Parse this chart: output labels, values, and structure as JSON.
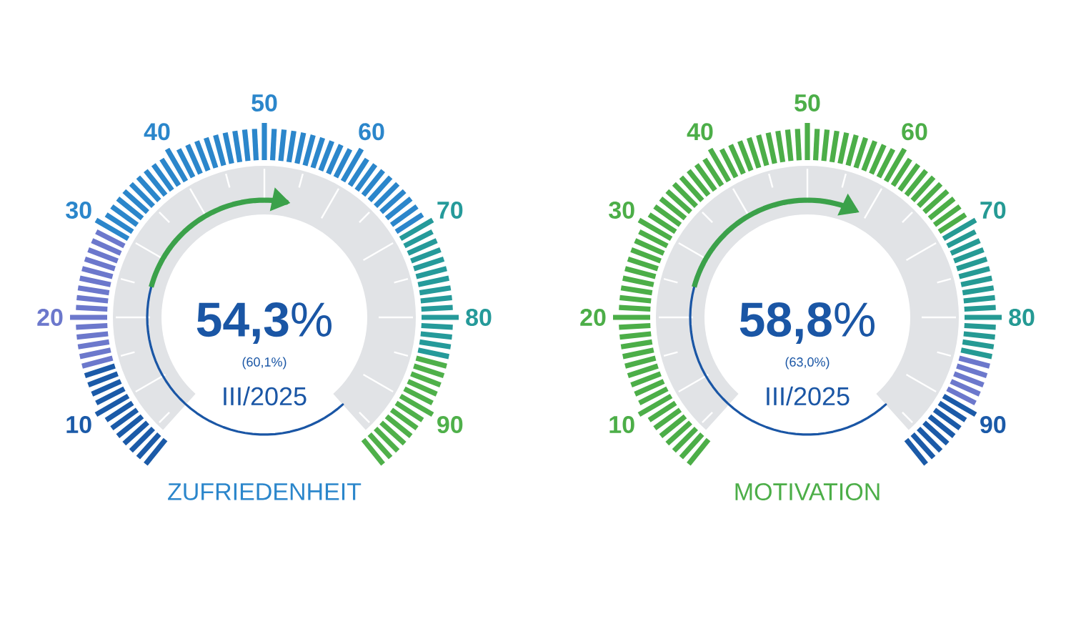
{
  "chart_data": [
    {
      "type": "other",
      "title": "ZUFRIEDENHEIT",
      "values": [
        54.3
      ],
      "value_labels": [
        "**54,3**%"
      ],
      "color": "#3ba14a",
      "annotations": [
        "(60,1%)",
        "III/2025",
        "10",
        "20",
        "30",
        "40",
        "50",
        "60",
        "70",
        "80",
        "90"
      ]
    },
    {
      "type": "other",
      "title": "MOTIVATION",
      "values": [
        58.8
      ],
      "value_labels": [
        "**58,8**%"
      ],
      "color": "#3ba14a",
      "annotations": [
        "(63,0%)",
        "III/2025",
        "10",
        "20",
        "30",
        "40",
        "50",
        "60",
        "70",
        "80",
        "90"
      ]
    }
  ]
}
